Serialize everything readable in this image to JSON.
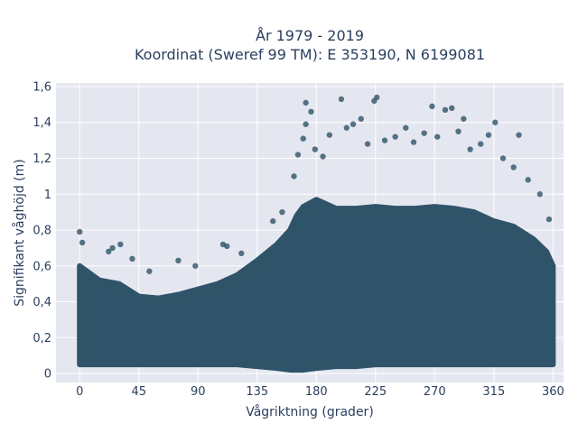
{
  "chart_data": {
    "type": "scatter",
    "title_lines": [
      "År 1979 - 2019",
      "Koordinat (Sweref 99 TM): E 353190, N 6199081"
    ],
    "xlabel": "Vågriktning (grader)",
    "ylabel": "Signifikant våghöjd (m)",
    "xlim": [
      -18,
      368
    ],
    "ylim": [
      -0.05,
      1.62
    ],
    "x_ticks": [
      0,
      45,
      90,
      135,
      180,
      225,
      270,
      315,
      360
    ],
    "x_tick_labels": [
      "0",
      "45",
      "90",
      "135",
      "180",
      "225",
      "270",
      "315",
      "360"
    ],
    "y_ticks": [
      0,
      0.2,
      0.4,
      0.6,
      0.8,
      1,
      1.2,
      1.4,
      1.6
    ],
    "y_tick_labels": [
      "0",
      "0,2",
      "0,4",
      "0,6",
      "0,8",
      "1",
      "1,2",
      "1,4",
      "1,6"
    ],
    "grid": true,
    "legend": "none",
    "marker_color": "#2f5469",
    "plot_bg": "#e5e7f0",
    "envelope": {
      "x": [
        0,
        15,
        30,
        45,
        60,
        75,
        90,
        105,
        120,
        135,
        150,
        160,
        165,
        170,
        180,
        195,
        210,
        225,
        240,
        255,
        270,
        285,
        300,
        315,
        330,
        345,
        355,
        360
      ],
      "upper": [
        0.6,
        0.52,
        0.5,
        0.43,
        0.42,
        0.44,
        0.47,
        0.5,
        0.55,
        0.63,
        0.72,
        0.8,
        0.88,
        0.93,
        0.97,
        0.92,
        0.92,
        0.93,
        0.92,
        0.92,
        0.93,
        0.92,
        0.9,
        0.85,
        0.82,
        0.75,
        0.68,
        0.6
      ],
      "lower": [
        0.05,
        0.05,
        0.05,
        0.05,
        0.05,
        0.05,
        0.05,
        0.05,
        0.05,
        0.04,
        0.03,
        0.02,
        0.02,
        0.02,
        0.03,
        0.04,
        0.04,
        0.05,
        0.05,
        0.05,
        0.05,
        0.05,
        0.05,
        0.05,
        0.05,
        0.05,
        0.05,
        0.05
      ]
    },
    "outliers": [
      {
        "x": 0,
        "y": 0.79
      },
      {
        "x": 2,
        "y": 0.73
      },
      {
        "x": 22,
        "y": 0.68
      },
      {
        "x": 25,
        "y": 0.7
      },
      {
        "x": 31,
        "y": 0.72
      },
      {
        "x": 40,
        "y": 0.64
      },
      {
        "x": 53,
        "y": 0.57
      },
      {
        "x": 75,
        "y": 0.63
      },
      {
        "x": 88,
        "y": 0.6
      },
      {
        "x": 109,
        "y": 0.72
      },
      {
        "x": 112,
        "y": 0.71
      },
      {
        "x": 123,
        "y": 0.67
      },
      {
        "x": 147,
        "y": 0.85
      },
      {
        "x": 154,
        "y": 0.9
      },
      {
        "x": 163,
        "y": 1.1
      },
      {
        "x": 166,
        "y": 1.22
      },
      {
        "x": 170,
        "y": 1.31
      },
      {
        "x": 172,
        "y": 1.51
      },
      {
        "x": 176,
        "y": 1.46
      },
      {
        "x": 172,
        "y": 1.39
      },
      {
        "x": 179,
        "y": 1.25
      },
      {
        "x": 185,
        "y": 1.21
      },
      {
        "x": 190,
        "y": 1.33
      },
      {
        "x": 199,
        "y": 1.53
      },
      {
        "x": 203,
        "y": 1.37
      },
      {
        "x": 208,
        "y": 1.39
      },
      {
        "x": 214,
        "y": 1.42
      },
      {
        "x": 219,
        "y": 1.28
      },
      {
        "x": 224,
        "y": 1.52
      },
      {
        "x": 226,
        "y": 1.54
      },
      {
        "x": 232,
        "y": 1.3
      },
      {
        "x": 240,
        "y": 1.32
      },
      {
        "x": 248,
        "y": 1.37
      },
      {
        "x": 254,
        "y": 1.29
      },
      {
        "x": 262,
        "y": 1.34
      },
      {
        "x": 268,
        "y": 1.49
      },
      {
        "x": 272,
        "y": 1.32
      },
      {
        "x": 278,
        "y": 1.47
      },
      {
        "x": 283,
        "y": 1.48
      },
      {
        "x": 288,
        "y": 1.35
      },
      {
        "x": 292,
        "y": 1.42
      },
      {
        "x": 297,
        "y": 1.25
      },
      {
        "x": 305,
        "y": 1.28
      },
      {
        "x": 311,
        "y": 1.33
      },
      {
        "x": 316,
        "y": 1.4
      },
      {
        "x": 322,
        "y": 1.2
      },
      {
        "x": 330,
        "y": 1.15
      },
      {
        "x": 334,
        "y": 1.33
      },
      {
        "x": 341,
        "y": 1.08
      },
      {
        "x": 350,
        "y": 1.0
      },
      {
        "x": 357,
        "y": 0.86
      }
    ]
  }
}
